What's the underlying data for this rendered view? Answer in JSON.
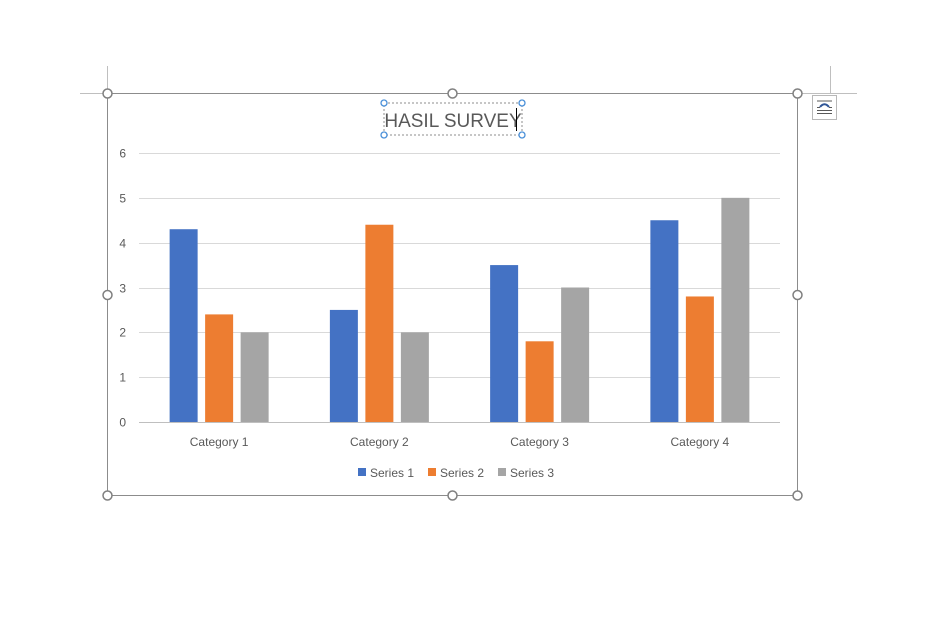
{
  "chart_data": {
    "type": "bar",
    "title": "HASIL SURVEY",
    "categories": [
      "Category 1",
      "Category 2",
      "Category 3",
      "Category 4"
    ],
    "series": [
      {
        "name": "Series 1",
        "values": [
          4.3,
          2.5,
          3.5,
          4.5
        ],
        "color": "#4472C4"
      },
      {
        "name": "Series 2",
        "values": [
          2.4,
          4.4,
          1.8,
          2.8
        ],
        "color": "#ED7D31"
      },
      {
        "name": "Series 3",
        "values": [
          2,
          2,
          3,
          5
        ],
        "color": "#A5A5A5"
      }
    ],
    "yticks": [
      "0",
      "1",
      "2",
      "3",
      "4",
      "5",
      "6"
    ],
    "ylim": [
      0,
      6
    ],
    "grid": true,
    "legend_position": "bottom"
  },
  "icons": {
    "layout_options": "layout-options-icon",
    "resize_handle": "resize-handle-icon"
  }
}
